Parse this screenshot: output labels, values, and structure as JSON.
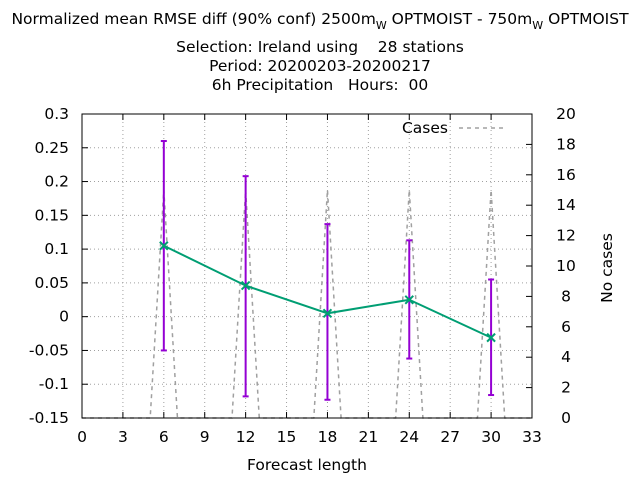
{
  "title": {
    "line1": {
      "t1": "Normalized mean RMSE diff (90% conf) 2500m",
      "s1": "W",
      "t2": " OPTMOIST - 750m",
      "s2": "W",
      "t3": " OPTMOIST"
    },
    "line2": "Selection: Ireland using    28 stations",
    "line3": "Period: 20200203-20200217",
    "line4": "6h Precipitation   Hours:  00"
  },
  "chart_data": {
    "type": "line",
    "xlabel": "Forecast length",
    "ylabel": "",
    "y2label": "No cases",
    "xlim": [
      0,
      33
    ],
    "ylim": [
      -0.15,
      0.3
    ],
    "y2lim": [
      0,
      20
    ],
    "xticks": [
      "0",
      "3",
      "6",
      "9",
      "12",
      "15",
      "18",
      "21",
      "24",
      "27",
      "30",
      "33"
    ],
    "yticks": [
      "0.3",
      "0.25",
      "0.2",
      "0.15",
      "0.1",
      "0.05",
      "0",
      "-0.05",
      "-0.1",
      "-0.15"
    ],
    "y2ticks": [
      "20",
      "18",
      "16",
      "14",
      "12",
      "10",
      "8",
      "6",
      "4",
      "2",
      "0"
    ],
    "grid": true,
    "legend": "top-right",
    "series": [
      {
        "axis": "y",
        "color": "#009e73",
        "x": [
          6,
          12,
          18,
          24,
          30
        ],
        "y": [
          0.105,
          0.046,
          0.005,
          0.025,
          -0.031
        ],
        "error_low": [
          -0.05,
          -0.118,
          -0.123,
          -0.062,
          -0.116
        ],
        "error_high": [
          0.26,
          0.208,
          0.137,
          0.113,
          0.055
        ],
        "error_color": "#9400d3"
      },
      {
        "name": "Cases",
        "axis": "y2",
        "style": "dashed",
        "color": "#a0a0a0",
        "x": [
          0,
          5,
          6,
          7,
          11,
          12,
          13,
          17,
          18,
          19,
          23,
          24,
          25,
          29,
          30,
          31,
          33
        ],
        "y": [
          0,
          0,
          15,
          0,
          0,
          15,
          0,
          0,
          15,
          0,
          0,
          15,
          0,
          0,
          15,
          0,
          0
        ]
      }
    ]
  }
}
